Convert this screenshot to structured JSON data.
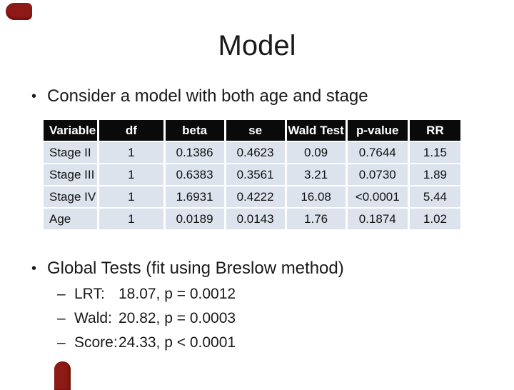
{
  "slide": {
    "title": "Model",
    "bullet_marker": "•",
    "dash_marker": "–",
    "bullet1": "Consider a model with both age and stage",
    "bullet2": "Global Tests (fit using Breslow method)"
  },
  "table": {
    "columns": [
      "Variable",
      "df",
      "beta",
      "se",
      "Wald Test",
      "p-value",
      "RR"
    ],
    "rows": [
      [
        "Stage II",
        "1",
        "0.1386",
        "0.4623",
        "0.09",
        "0.7644",
        "1.15"
      ],
      [
        "Stage III",
        "1",
        "0.6383",
        "0.3561",
        "3.21",
        "0.0730",
        "1.89"
      ],
      [
        "Stage IV",
        "1",
        "1.6931",
        "0.4222",
        "16.08",
        "<0.0001",
        "5.44"
      ],
      [
        "Age",
        "1",
        "0.0189",
        "0.0143",
        "1.76",
        "0.1874",
        "1.02"
      ]
    ]
  },
  "global_tests": {
    "items": [
      {
        "label": "LRT:",
        "value": "18.07, p = 0.0012"
      },
      {
        "label": "Wald:",
        "value": "20.82, p = 0.0003"
      },
      {
        "label": "Score:",
        "value": "24.33, p < 0.0001"
      }
    ]
  },
  "colors": {
    "header_bg": "#0a0a0a",
    "header_text": "#ffffff",
    "row_bg": "#dce3ed",
    "text": "#1a1a1a",
    "ornament": "#8e1a16"
  }
}
